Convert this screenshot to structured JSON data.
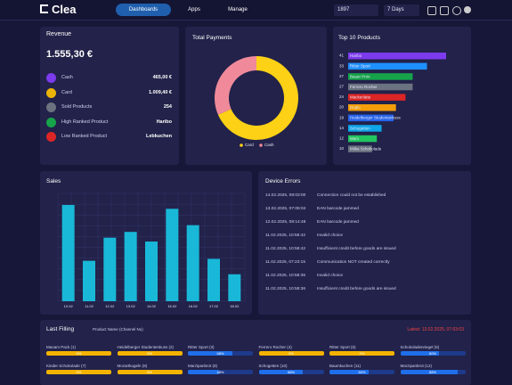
{
  "nav": {
    "logo": "Clea",
    "tabs": [
      "Dashboards",
      "Apps",
      "Manage"
    ],
    "search": "1897",
    "range": "7 Days"
  },
  "revenue": {
    "title": "Revenue",
    "total": "1.555,30 €",
    "rows": [
      {
        "label": "Cash",
        "value": "465,00 €",
        "color": "#7c3aed"
      },
      {
        "label": "Card",
        "value": "1.009,40 €",
        "color": "#eab308"
      },
      {
        "label": "Sold Products",
        "value": "254",
        "color": "#6b7280"
      },
      {
        "label": "High Ranked Product",
        "value": "Haribo",
        "color": "#16a34a"
      },
      {
        "label": "Low Ranked Product",
        "value": "Lebkuchen",
        "color": "#dc2626"
      }
    ]
  },
  "chart_data": [
    {
      "type": "pie",
      "title": "Total Payments",
      "categories": [
        "Card",
        "Cash"
      ],
      "values": [
        1009.4,
        465
      ],
      "colors": [
        "#fcd116",
        "#f08a9a"
      ]
    },
    {
      "type": "hbar",
      "title": "Top 10 Products",
      "categories": [
        "Haribo",
        "Ritter Sport",
        "Bauer Prim",
        "Ferrero Rocher",
        "Mackerlatte",
        "Duplo",
        "Heidelberger Studentenkuss",
        "Schogetten",
        "Mars",
        "Milka Schokolade"
      ],
      "values": [
        41,
        33,
        27,
        27,
        24,
        20,
        19,
        14,
        12,
        10
      ],
      "colors": [
        "#7c3aed",
        "#1e90ff",
        "#16a34a",
        "#6b7280",
        "#dc2626",
        "#f59e0b",
        "#2563eb",
        "#0ea5e9",
        "#22c55e",
        "#6b7280"
      ],
      "xlim": [
        0,
        41
      ]
    },
    {
      "type": "bar",
      "title": "Sales",
      "categories": [
        "10.02",
        "11.02",
        "12.02",
        "13.02",
        "14.02",
        "15.02",
        "16.02",
        "17.02",
        "18.02"
      ],
      "values": [
        100,
        42,
        66,
        72,
        62,
        96,
        79,
        44,
        28
      ],
      "color": "#19b8d8",
      "ylim": [
        0,
        112
      ]
    }
  ],
  "device_errors": {
    "title": "Device Errors",
    "rows": [
      {
        "time": "14.02.2025, 08:03:00",
        "message": "Connection could not be established"
      },
      {
        "time": "13.02.2025, 07:06:04",
        "message": "EAN barcode jammed"
      },
      {
        "time": "12.02.2025, 08:14:48",
        "message": "EAN barcode jammed"
      },
      {
        "time": "11.02.2025, 10:58:42",
        "message": "Invalid choice"
      },
      {
        "time": "11.02.2025, 10:58:42",
        "message": "Insufficient credit before goods are issued"
      },
      {
        "time": "11.02.2025, 07:23:15",
        "message": "Communication NOT created correctly"
      },
      {
        "time": "11.02.2025, 10:58:36",
        "message": "Invalid choice"
      },
      {
        "time": "11.02.2025, 10:58:36",
        "message": "Insufficient credit before goods are issued"
      }
    ]
  },
  "last_filling": {
    "title": "Last Filling",
    "subtitle": "Product Name (Channel No)",
    "latest": "Latest: 13.02.2025, 07:03:03",
    "items": [
      {
        "label": "Maoam Pack (1)",
        "value": 0,
        "value_label": "0%",
        "color": "#f5b301"
      },
      {
        "label": "Heidelberger Studentenkuss (2)",
        "value": 0,
        "value_label": "0%",
        "color": "#f5b301"
      },
      {
        "label": "Ritter Sport (3)",
        "value": 68,
        "value_label": "68%",
        "color": "#1e3a8a"
      },
      {
        "label": "Ferrero Rocher (4)",
        "value": 0,
        "value_label": "0%",
        "color": "#f5b301"
      },
      {
        "label": "Ritter Sport (5)",
        "value": 0,
        "value_label": "0%",
        "color": "#f5b301"
      },
      {
        "label": "Schokoladenriegel (6)",
        "value": 60,
        "value_label": "60%",
        "color": "#1e3a8a"
      },
      {
        "label": "Kinder Schokolade (7)",
        "value": 0,
        "value_label": "0%",
        "color": "#f5b301"
      },
      {
        "label": "Mozartkugeln (8)",
        "value": 0,
        "value_label": "0%",
        "color": "#f5b301"
      },
      {
        "label": "Marzipanbrot (9)",
        "value": 48,
        "value_label": "48%",
        "color": "#1e3a8a"
      },
      {
        "label": "Schogetten (10)",
        "value": 68,
        "value_label": "68%",
        "color": "#1e3a8a"
      },
      {
        "label": "Baumkuchen (11)",
        "value": 60,
        "value_label": "60%",
        "color": "#1e3a8a"
      },
      {
        "label": "Marzipanbrot (12)",
        "value": 88,
        "value_label": "88%",
        "color": "#1e3a8a"
      }
    ]
  }
}
